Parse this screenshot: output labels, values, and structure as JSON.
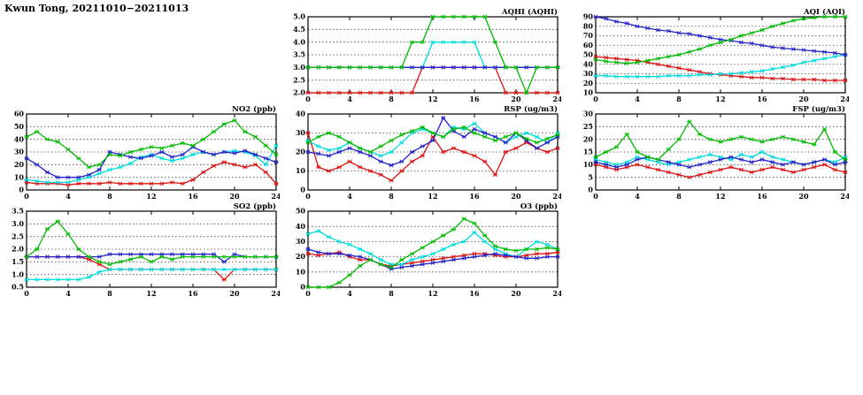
{
  "title": "Kwun Tong, 20211010−20211013",
  "colors": {
    "green": "#00bb00",
    "cyan": "#00dddd",
    "blue": "#2222cc",
    "red": "#dd1111"
  },
  "chart_data": [
    {
      "id": "aqhi",
      "type": "line",
      "title": "AQHI (AQHI)",
      "xlabel": "",
      "ylabel": "AQHI",
      "xlim": [
        0,
        24
      ],
      "xticks": [
        0,
        4,
        8,
        12,
        16,
        20,
        24
      ],
      "xtick_labels": [
        "0",
        "4",
        "8",
        "12",
        "16",
        "20",
        "24"
      ],
      "ylim": [
        2.0,
        5.0
      ],
      "yticks": [
        2.0,
        2.5,
        3.0,
        3.5,
        4.0,
        4.5,
        5.0
      ],
      "ytick_labels": [
        "2.0",
        "2.5",
        "3.0",
        "3.5",
        "4.0",
        "4.5",
        "5.0"
      ],
      "grid": "horizontal-dotted",
      "legend": "none",
      "series": [
        {
          "name": "red",
          "color": "#dd1111",
          "values": [
            2,
            2,
            2,
            2,
            2,
            2,
            2,
            2,
            2,
            2,
            2,
            3,
            3,
            3,
            3,
            3,
            3,
            3,
            3,
            2,
            2,
            2,
            2,
            2,
            2
          ]
        },
        {
          "name": "cyan",
          "color": "#00dddd",
          "values": [
            3,
            3,
            3,
            3,
            3,
            3,
            3,
            3,
            3,
            3,
            3,
            3,
            4,
            4,
            4,
            4,
            4,
            3,
            3,
            3,
            3,
            3,
            3,
            3,
            3
          ]
        },
        {
          "name": "blue",
          "color": "#2222cc",
          "values": [
            3,
            3,
            3,
            3,
            3,
            3,
            3,
            3,
            3,
            3,
            3,
            3,
            3,
            3,
            3,
            3,
            3,
            3,
            3,
            3,
            3,
            3,
            3,
            3,
            3
          ]
        },
        {
          "name": "green",
          "color": "#00bb00",
          "values": [
            3,
            3,
            3,
            3,
            3,
            3,
            3,
            3,
            3,
            3,
            4,
            4,
            5,
            5,
            5,
            5,
            5,
            5,
            4,
            3,
            3,
            2,
            3,
            3,
            3
          ]
        }
      ]
    },
    {
      "id": "aqi",
      "type": "line",
      "title": "AQI (AQI)",
      "xlabel": "",
      "ylabel": "AQI",
      "xlim": [
        0,
        24
      ],
      "xticks": [
        0,
        4,
        8,
        12,
        16,
        20,
        24
      ],
      "xtick_labels": [
        "0",
        "4",
        "8",
        "12",
        "16",
        "20",
        "24"
      ],
      "ylim": [
        10,
        90
      ],
      "yticks": [
        10,
        20,
        30,
        40,
        50,
        60,
        70,
        80,
        90
      ],
      "ytick_labels": [
        "10",
        "20",
        "30",
        "40",
        "50",
        "60",
        "70",
        "80",
        "90"
      ],
      "grid": "horizontal-dotted",
      "legend": "none",
      "series": [
        {
          "name": "red",
          "color": "#dd1111",
          "values": [
            48,
            47,
            46,
            45,
            44,
            42,
            40,
            38,
            36,
            34,
            32,
            30,
            29,
            28,
            27,
            26,
            26,
            25,
            25,
            24,
            24,
            24,
            23,
            23,
            23
          ]
        },
        {
          "name": "cyan",
          "color": "#00dddd",
          "values": [
            28,
            28,
            27,
            27,
            27,
            27,
            27,
            28,
            28,
            28,
            29,
            29,
            30,
            30,
            31,
            32,
            33,
            35,
            37,
            39,
            42,
            44,
            46,
            48,
            50
          ]
        },
        {
          "name": "blue",
          "color": "#2222cc",
          "values": [
            90,
            88,
            85,
            83,
            80,
            78,
            76,
            75,
            73,
            72,
            70,
            68,
            66,
            65,
            63,
            62,
            60,
            58,
            57,
            56,
            55,
            54,
            53,
            52,
            50
          ]
        },
        {
          "name": "green",
          "color": "#00bb00",
          "values": [
            45,
            43,
            42,
            41,
            42,
            44,
            46,
            48,
            50,
            53,
            56,
            60,
            63,
            66,
            70,
            73,
            76,
            80,
            83,
            86,
            88,
            89,
            90,
            90,
            90
          ]
        }
      ]
    },
    {
      "id": "no2",
      "type": "line",
      "title": "NO2 (ppb)",
      "xlabel": "",
      "ylabel": "NO2",
      "xlim": [
        0,
        24
      ],
      "xticks": [
        0,
        4,
        8,
        12,
        16,
        20,
        24
      ],
      "xtick_labels": [
        "0",
        "4",
        "8",
        "12",
        "16",
        "20",
        "24"
      ],
      "ylim": [
        0,
        60
      ],
      "yticks": [
        0,
        10,
        20,
        30,
        40,
        50,
        60
      ],
      "ytick_labels": [
        "0",
        "10",
        "20",
        "30",
        "40",
        "50",
        "60"
      ],
      "grid": "horizontal-dotted",
      "legend": "none",
      "series": [
        {
          "name": "red",
          "color": "#dd1111",
          "values": [
            6,
            5,
            5,
            5,
            4,
            5,
            5,
            5,
            6,
            5,
            5,
            5,
            5,
            5,
            6,
            5,
            8,
            14,
            19,
            22,
            20,
            18,
            20,
            14,
            5
          ]
        },
        {
          "name": "cyan",
          "color": "#00dddd",
          "values": [
            8,
            7,
            6,
            6,
            6,
            8,
            10,
            13,
            16,
            18,
            21,
            26,
            28,
            25,
            23,
            25,
            28,
            30,
            28,
            30,
            31,
            30,
            27,
            20,
            35
          ]
        },
        {
          "name": "blue",
          "color": "#2222cc",
          "values": [
            25,
            20,
            14,
            10,
            10,
            10,
            12,
            16,
            30,
            28,
            26,
            25,
            27,
            30,
            26,
            28,
            34,
            30,
            28,
            30,
            29,
            31,
            28,
            25,
            22
          ]
        },
        {
          "name": "green",
          "color": "#00bb00",
          "values": [
            42,
            46,
            40,
            38,
            32,
            25,
            18,
            20,
            28,
            27,
            30,
            32,
            34,
            33,
            35,
            37,
            35,
            40,
            46,
            52,
            55,
            46,
            42,
            35,
            28
          ]
        }
      ]
    },
    {
      "id": "rsp",
      "type": "line",
      "title": "RSP (ug/m3)",
      "xlabel": "",
      "ylabel": "RSP",
      "xlim": [
        0,
        24
      ],
      "xticks": [
        0,
        4,
        8,
        12,
        16,
        20,
        24
      ],
      "xtick_labels": [
        "0",
        "4",
        "8",
        "12",
        "16",
        "20",
        "24"
      ],
      "ylim": [
        0,
        40
      ],
      "yticks": [
        0,
        10,
        20,
        30,
        40
      ],
      "ytick_labels": [
        "0",
        "10",
        "20",
        "30",
        "40"
      ],
      "grid": "horizontal-dotted",
      "legend": "none",
      "series": [
        {
          "name": "red",
          "color": "#dd1111",
          "values": [
            30,
            12,
            10,
            12,
            15,
            12,
            10,
            8,
            5,
            10,
            15,
            18,
            28,
            20,
            22,
            20,
            18,
            15,
            8,
            20,
            22,
            25,
            22,
            20,
            22
          ]
        },
        {
          "name": "cyan",
          "color": "#00dddd",
          "values": [
            26,
            23,
            21,
            22,
            25,
            22,
            20,
            18,
            20,
            25,
            30,
            32,
            30,
            28,
            33,
            32,
            35,
            30,
            28,
            25,
            28,
            30,
            28,
            25,
            30
          ]
        },
        {
          "name": "blue",
          "color": "#2222cc",
          "values": [
            20,
            19,
            18,
            20,
            22,
            20,
            18,
            15,
            13,
            15,
            20,
            23,
            26,
            38,
            31,
            28,
            32,
            30,
            28,
            25,
            30,
            26,
            22,
            25,
            28
          ]
        },
        {
          "name": "green",
          "color": "#00bb00",
          "values": [
            25,
            28,
            30,
            28,
            25,
            22,
            20,
            23,
            26,
            29,
            31,
            33,
            30,
            28,
            32,
            33,
            30,
            28,
            26,
            28,
            30,
            27,
            25,
            27,
            29
          ]
        }
      ]
    },
    {
      "id": "fsp",
      "type": "line",
      "title": "FSP (ug/m3)",
      "xlabel": "",
      "ylabel": "FSP",
      "xlim": [
        0,
        24
      ],
      "xticks": [
        0,
        4,
        8,
        12,
        16,
        20,
        24
      ],
      "xtick_labels": [
        "0",
        "4",
        "8",
        "12",
        "16",
        "20",
        "24"
      ],
      "ylim": [
        0,
        30
      ],
      "yticks": [
        0,
        5,
        10,
        15,
        20,
        25,
        30
      ],
      "ytick_labels": [
        "0",
        "5",
        "10",
        "15",
        "20",
        "25",
        "30"
      ],
      "grid": "horizontal-dotted",
      "legend": "none",
      "series": [
        {
          "name": "red",
          "color": "#dd1111",
          "values": [
            10,
            9,
            8,
            9,
            10,
            9,
            8,
            7,
            6,
            5,
            6,
            7,
            8,
            9,
            8,
            7,
            8,
            9,
            8,
            7,
            8,
            9,
            10,
            8,
            7
          ]
        },
        {
          "name": "cyan",
          "color": "#00dddd",
          "values": [
            12,
            11,
            10,
            11,
            13,
            12,
            11,
            10,
            11,
            12,
            13,
            14,
            13,
            12,
            14,
            13,
            15,
            13,
            12,
            11,
            10,
            11,
            12,
            11,
            13
          ]
        },
        {
          "name": "blue",
          "color": "#2222cc",
          "values": [
            11,
            10,
            9,
            10,
            12,
            13,
            12,
            11,
            10,
            9,
            10,
            11,
            12,
            13,
            12,
            11,
            12,
            11,
            10,
            11,
            10,
            11,
            12,
            10,
            11
          ]
        },
        {
          "name": "green",
          "color": "#00bb00",
          "values": [
            13,
            15,
            17,
            22,
            15,
            13,
            12,
            16,
            20,
            27,
            22,
            20,
            19,
            20,
            21,
            20,
            19,
            20,
            21,
            20,
            19,
            18,
            24,
            15,
            12
          ]
        }
      ]
    },
    {
      "id": "so2",
      "type": "line",
      "title": "SO2 (ppb)",
      "xlabel": "",
      "ylabel": "SO2",
      "xlim": [
        0,
        24
      ],
      "xticks": [
        0,
        4,
        8,
        12,
        16,
        20,
        24
      ],
      "xtick_labels": [
        "0",
        "4",
        "8",
        "12",
        "16",
        "20",
        "24"
      ],
      "ylim": [
        0.5,
        3.5
      ],
      "yticks": [
        0.5,
        1.0,
        1.5,
        2.0,
        2.5,
        3.0,
        3.5
      ],
      "ytick_labels": [
        "0.5",
        "1.0",
        "1.5",
        "2.0",
        "2.5",
        "3.0",
        "3.5"
      ],
      "grid": "horizontal-dotted",
      "legend": "none",
      "series": [
        {
          "name": "red",
          "color": "#dd1111",
          "values": [
            1.7,
            1.7,
            1.7,
            1.7,
            1.7,
            1.7,
            1.6,
            1.4,
            1.2,
            1.2,
            1.2,
            1.2,
            1.2,
            1.2,
            1.2,
            1.2,
            1.2,
            1.2,
            1.2,
            0.8,
            1.2,
            1.2,
            1.2,
            1.2,
            1.2
          ]
        },
        {
          "name": "cyan",
          "color": "#00dddd",
          "values": [
            0.8,
            0.8,
            0.8,
            0.8,
            0.8,
            0.8,
            0.9,
            1.1,
            1.2,
            1.2,
            1.2,
            1.2,
            1.2,
            1.2,
            1.2,
            1.2,
            1.2,
            1.2,
            1.2,
            1.2,
            1.2,
            1.2,
            1.2,
            1.2,
            1.2
          ]
        },
        {
          "name": "blue",
          "color": "#2222cc",
          "values": [
            1.7,
            1.7,
            1.7,
            1.7,
            1.7,
            1.7,
            1.7,
            1.7,
            1.8,
            1.8,
            1.8,
            1.8,
            1.8,
            1.8,
            1.8,
            1.8,
            1.8,
            1.8,
            1.8,
            1.5,
            1.8,
            1.7,
            1.7,
            1.7,
            1.7
          ]
        },
        {
          "name": "green",
          "color": "#00bb00",
          "values": [
            1.7,
            2.0,
            2.8,
            3.1,
            2.6,
            2.0,
            1.7,
            1.5,
            1.4,
            1.5,
            1.6,
            1.7,
            1.5,
            1.7,
            1.6,
            1.7,
            1.7,
            1.7,
            1.7,
            1.7,
            1.7,
            1.7,
            1.7,
            1.7,
            1.7
          ]
        }
      ]
    },
    {
      "id": "o3",
      "type": "line",
      "title": "O3 (ppb)",
      "xlabel": "",
      "ylabel": "O3",
      "xlim": [
        0,
        24
      ],
      "xticks": [
        0,
        4,
        8,
        12,
        16,
        20,
        24
      ],
      "xtick_labels": [
        "0",
        "4",
        "8",
        "12",
        "16",
        "20",
        "24"
      ],
      "ylim": [
        0,
        50
      ],
      "yticks": [
        0,
        10,
        20,
        30,
        40,
        50
      ],
      "ytick_labels": [
        "0",
        "10",
        "20",
        "30",
        "40",
        "50"
      ],
      "grid": "horizontal-dotted",
      "legend": "none",
      "series": [
        {
          "name": "red",
          "color": "#dd1111",
          "values": [
            22,
            21,
            22,
            23,
            20,
            18,
            18,
            15,
            14,
            15,
            16,
            17,
            18,
            19,
            20,
            21,
            22,
            22,
            21,
            20,
            20,
            21,
            22,
            22,
            23
          ]
        },
        {
          "name": "cyan",
          "color": "#00dddd",
          "values": [
            35,
            37,
            33,
            30,
            28,
            25,
            22,
            18,
            15,
            15,
            18,
            20,
            22,
            25,
            28,
            30,
            36,
            30,
            25,
            22,
            20,
            25,
            30,
            28,
            25
          ]
        },
        {
          "name": "blue",
          "color": "#2222cc",
          "values": [
            25,
            23,
            22,
            22,
            21,
            20,
            18,
            15,
            12,
            13,
            14,
            15,
            16,
            17,
            18,
            19,
            20,
            21,
            22,
            21,
            20,
            19,
            19,
            20,
            20
          ]
        },
        {
          "name": "green",
          "color": "#00bb00",
          "values": [
            0,
            0,
            0,
            3,
            8,
            14,
            18,
            15,
            13,
            18,
            22,
            26,
            30,
            34,
            38,
            45,
            42,
            34,
            27,
            25,
            24,
            25,
            25,
            26,
            25
          ]
        }
      ]
    }
  ]
}
